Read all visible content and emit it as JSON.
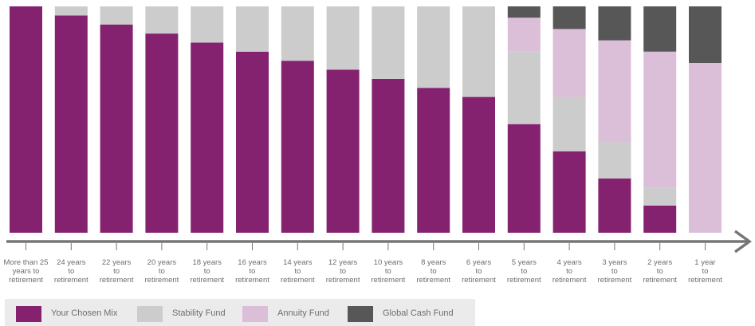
{
  "chart_data": {
    "type": "bar",
    "stacked": true,
    "categories": [
      [
        "More than 25",
        "years to",
        "retirement"
      ],
      [
        "24 years",
        "to",
        "retirement"
      ],
      [
        "22 years",
        "to",
        "retirement"
      ],
      [
        "20 years",
        "to",
        "retirement"
      ],
      [
        "18 years",
        "to",
        "retirement"
      ],
      [
        "16 years",
        "to",
        "retirement"
      ],
      [
        "14 years",
        "to",
        "retirement"
      ],
      [
        "12 years",
        "to",
        "retirement"
      ],
      [
        "10 years",
        "to",
        "retirement"
      ],
      [
        "8 years",
        "to",
        "retirement"
      ],
      [
        "6 years",
        "to",
        "retirement"
      ],
      [
        "5 years",
        "to",
        "retirement"
      ],
      [
        "4 years",
        "to",
        "retirement"
      ],
      [
        "3 years",
        "to",
        "retirement"
      ],
      [
        "2 years",
        "to",
        "retirement"
      ],
      [
        "1 year",
        "to",
        "retirement"
      ]
    ],
    "series": [
      {
        "name": "Your Chosen Mix",
        "color": "#84226f",
        "values": [
          100,
          96,
          92,
          88,
          84,
          80,
          76,
          72,
          68,
          64,
          60,
          48,
          36,
          24,
          12,
          0
        ]
      },
      {
        "name": "Stability Fund",
        "color": "#cccccc",
        "values": [
          0,
          4,
          8,
          12,
          16,
          20,
          24,
          28,
          32,
          36,
          40,
          32,
          24,
          16,
          8,
          0
        ]
      },
      {
        "name": "Annuity Fund",
        "color": "#dbbed7",
        "values": [
          0,
          0,
          0,
          0,
          0,
          0,
          0,
          0,
          0,
          0,
          0,
          15,
          30,
          45,
          60,
          75
        ]
      },
      {
        "name": "Global Cash Fund",
        "color": "#575757",
        "values": [
          0,
          0,
          0,
          0,
          0,
          0,
          0,
          0,
          0,
          0,
          0,
          5,
          10,
          15,
          20,
          25
        ]
      }
    ],
    "ylim": [
      0,
      100
    ],
    "xlabel": "",
    "ylabel": "",
    "legend_position": "bottom-left",
    "axis_color": "#767676"
  }
}
